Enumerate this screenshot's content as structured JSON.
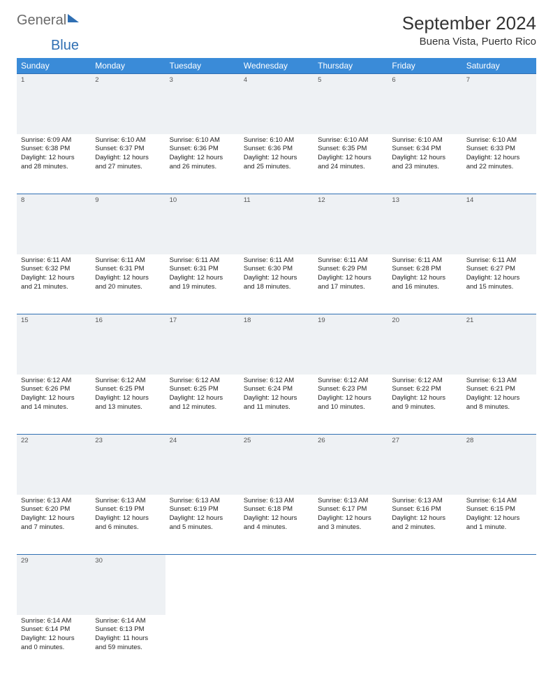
{
  "brand": {
    "part1": "General",
    "part2": "Blue"
  },
  "title": "September 2024",
  "location": "Buena Vista, Puerto Rico",
  "colors": {
    "header_bg": "#3a8bd8",
    "row_border": "#2f6fb3",
    "daynum_bg": "#eef1f4",
    "text": "#222222"
  },
  "weekdays": [
    "Sunday",
    "Monday",
    "Tuesday",
    "Wednesday",
    "Thursday",
    "Friday",
    "Saturday"
  ],
  "weeks": [
    {
      "nums": [
        "1",
        "2",
        "3",
        "4",
        "5",
        "6",
        "7"
      ],
      "cells": [
        {
          "sunrise": "Sunrise: 6:09 AM",
          "sunset": "Sunset: 6:38 PM",
          "day1": "Daylight: 12 hours",
          "day2": "and 28 minutes."
        },
        {
          "sunrise": "Sunrise: 6:10 AM",
          "sunset": "Sunset: 6:37 PM",
          "day1": "Daylight: 12 hours",
          "day2": "and 27 minutes."
        },
        {
          "sunrise": "Sunrise: 6:10 AM",
          "sunset": "Sunset: 6:36 PM",
          "day1": "Daylight: 12 hours",
          "day2": "and 26 minutes."
        },
        {
          "sunrise": "Sunrise: 6:10 AM",
          "sunset": "Sunset: 6:36 PM",
          "day1": "Daylight: 12 hours",
          "day2": "and 25 minutes."
        },
        {
          "sunrise": "Sunrise: 6:10 AM",
          "sunset": "Sunset: 6:35 PM",
          "day1": "Daylight: 12 hours",
          "day2": "and 24 minutes."
        },
        {
          "sunrise": "Sunrise: 6:10 AM",
          "sunset": "Sunset: 6:34 PM",
          "day1": "Daylight: 12 hours",
          "day2": "and 23 minutes."
        },
        {
          "sunrise": "Sunrise: 6:10 AM",
          "sunset": "Sunset: 6:33 PM",
          "day1": "Daylight: 12 hours",
          "day2": "and 22 minutes."
        }
      ]
    },
    {
      "nums": [
        "8",
        "9",
        "10",
        "11",
        "12",
        "13",
        "14"
      ],
      "cells": [
        {
          "sunrise": "Sunrise: 6:11 AM",
          "sunset": "Sunset: 6:32 PM",
          "day1": "Daylight: 12 hours",
          "day2": "and 21 minutes."
        },
        {
          "sunrise": "Sunrise: 6:11 AM",
          "sunset": "Sunset: 6:31 PM",
          "day1": "Daylight: 12 hours",
          "day2": "and 20 minutes."
        },
        {
          "sunrise": "Sunrise: 6:11 AM",
          "sunset": "Sunset: 6:31 PM",
          "day1": "Daylight: 12 hours",
          "day2": "and 19 minutes."
        },
        {
          "sunrise": "Sunrise: 6:11 AM",
          "sunset": "Sunset: 6:30 PM",
          "day1": "Daylight: 12 hours",
          "day2": "and 18 minutes."
        },
        {
          "sunrise": "Sunrise: 6:11 AM",
          "sunset": "Sunset: 6:29 PM",
          "day1": "Daylight: 12 hours",
          "day2": "and 17 minutes."
        },
        {
          "sunrise": "Sunrise: 6:11 AM",
          "sunset": "Sunset: 6:28 PM",
          "day1": "Daylight: 12 hours",
          "day2": "and 16 minutes."
        },
        {
          "sunrise": "Sunrise: 6:11 AM",
          "sunset": "Sunset: 6:27 PM",
          "day1": "Daylight: 12 hours",
          "day2": "and 15 minutes."
        }
      ]
    },
    {
      "nums": [
        "15",
        "16",
        "17",
        "18",
        "19",
        "20",
        "21"
      ],
      "cells": [
        {
          "sunrise": "Sunrise: 6:12 AM",
          "sunset": "Sunset: 6:26 PM",
          "day1": "Daylight: 12 hours",
          "day2": "and 14 minutes."
        },
        {
          "sunrise": "Sunrise: 6:12 AM",
          "sunset": "Sunset: 6:25 PM",
          "day1": "Daylight: 12 hours",
          "day2": "and 13 minutes."
        },
        {
          "sunrise": "Sunrise: 6:12 AM",
          "sunset": "Sunset: 6:25 PM",
          "day1": "Daylight: 12 hours",
          "day2": "and 12 minutes."
        },
        {
          "sunrise": "Sunrise: 6:12 AM",
          "sunset": "Sunset: 6:24 PM",
          "day1": "Daylight: 12 hours",
          "day2": "and 11 minutes."
        },
        {
          "sunrise": "Sunrise: 6:12 AM",
          "sunset": "Sunset: 6:23 PM",
          "day1": "Daylight: 12 hours",
          "day2": "and 10 minutes."
        },
        {
          "sunrise": "Sunrise: 6:12 AM",
          "sunset": "Sunset: 6:22 PM",
          "day1": "Daylight: 12 hours",
          "day2": "and 9 minutes."
        },
        {
          "sunrise": "Sunrise: 6:13 AM",
          "sunset": "Sunset: 6:21 PM",
          "day1": "Daylight: 12 hours",
          "day2": "and 8 minutes."
        }
      ]
    },
    {
      "nums": [
        "22",
        "23",
        "24",
        "25",
        "26",
        "27",
        "28"
      ],
      "cells": [
        {
          "sunrise": "Sunrise: 6:13 AM",
          "sunset": "Sunset: 6:20 PM",
          "day1": "Daylight: 12 hours",
          "day2": "and 7 minutes."
        },
        {
          "sunrise": "Sunrise: 6:13 AM",
          "sunset": "Sunset: 6:19 PM",
          "day1": "Daylight: 12 hours",
          "day2": "and 6 minutes."
        },
        {
          "sunrise": "Sunrise: 6:13 AM",
          "sunset": "Sunset: 6:19 PM",
          "day1": "Daylight: 12 hours",
          "day2": "and 5 minutes."
        },
        {
          "sunrise": "Sunrise: 6:13 AM",
          "sunset": "Sunset: 6:18 PM",
          "day1": "Daylight: 12 hours",
          "day2": "and 4 minutes."
        },
        {
          "sunrise": "Sunrise: 6:13 AM",
          "sunset": "Sunset: 6:17 PM",
          "day1": "Daylight: 12 hours",
          "day2": "and 3 minutes."
        },
        {
          "sunrise": "Sunrise: 6:13 AM",
          "sunset": "Sunset: 6:16 PM",
          "day1": "Daylight: 12 hours",
          "day2": "and 2 minutes."
        },
        {
          "sunrise": "Sunrise: 6:14 AM",
          "sunset": "Sunset: 6:15 PM",
          "day1": "Daylight: 12 hours",
          "day2": "and 1 minute."
        }
      ]
    },
    {
      "nums": [
        "29",
        "30",
        "",
        "",
        "",
        "",
        ""
      ],
      "cells": [
        {
          "sunrise": "Sunrise: 6:14 AM",
          "sunset": "Sunset: 6:14 PM",
          "day1": "Daylight: 12 hours",
          "day2": "and 0 minutes."
        },
        {
          "sunrise": "Sunrise: 6:14 AM",
          "sunset": "Sunset: 6:13 PM",
          "day1": "Daylight: 11 hours",
          "day2": "and 59 minutes."
        },
        null,
        null,
        null,
        null,
        null
      ]
    }
  ]
}
